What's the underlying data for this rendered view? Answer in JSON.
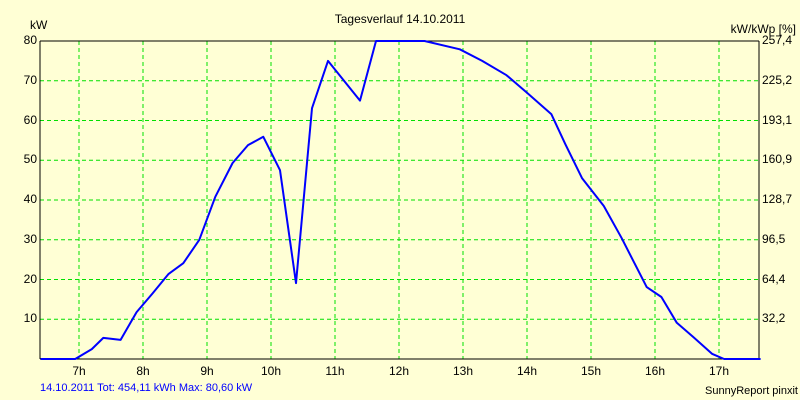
{
  "chart_data": {
    "type": "line",
    "title": "Tagesverlauf 14.10.2011",
    "ylabel": "kW",
    "ylabel_right": "kW/kWp [%]",
    "xlabel": "",
    "ylim": [
      0,
      80
    ],
    "x_range_hours": [
      6.4,
      17.65
    ],
    "y_ticks": [
      "10",
      "20",
      "30",
      "40",
      "50",
      "60",
      "70",
      "80"
    ],
    "y_ticks_right": [
      "32,2",
      "64,4",
      "96,5",
      "128,7",
      "160,9",
      "193,1",
      "225,2",
      "257,4"
    ],
    "x_ticks": [
      "7h",
      "8h",
      "9h",
      "10h",
      "11h",
      "12h",
      "13h",
      "14h",
      "15h",
      "16h",
      "17h"
    ],
    "grid": true,
    "series": [
      {
        "name": "kW",
        "color": "#0000ff",
        "points": [
          [
            6.4,
            0
          ],
          [
            6.94,
            0
          ],
          [
            7.2,
            2.5
          ],
          [
            7.38,
            5.3
          ],
          [
            7.65,
            4.8
          ],
          [
            7.9,
            11.8
          ],
          [
            8.15,
            16.5
          ],
          [
            8.4,
            21.4
          ],
          [
            8.63,
            24.1
          ],
          [
            8.88,
            30
          ],
          [
            9.13,
            40.8
          ],
          [
            9.4,
            49.3
          ],
          [
            9.64,
            53.8
          ],
          [
            9.88,
            55.9
          ],
          [
            10.14,
            47.5
          ],
          [
            10.39,
            19.1
          ],
          [
            10.64,
            63.1
          ],
          [
            10.89,
            75
          ],
          [
            11.14,
            70
          ],
          [
            11.39,
            65
          ],
          [
            11.64,
            80
          ],
          [
            12.0,
            80
          ],
          [
            12.4,
            80
          ],
          [
            12.95,
            77.9
          ],
          [
            13.3,
            75
          ],
          [
            13.68,
            71.4
          ],
          [
            14.0,
            67
          ],
          [
            14.38,
            61.6
          ],
          [
            14.6,
            54
          ],
          [
            14.86,
            45.5
          ],
          [
            15.2,
            38.5
          ],
          [
            15.48,
            30.4
          ],
          [
            15.87,
            18.1
          ],
          [
            16.1,
            15.6
          ],
          [
            16.34,
            9.1
          ],
          [
            16.6,
            5.5
          ],
          [
            16.89,
            1.3
          ],
          [
            17.08,
            0
          ],
          [
            17.65,
            0
          ]
        ]
      }
    ]
  },
  "footer": {
    "summary": "14.10.2011 Tot: 454,11 kWh Max: 80,60 kW",
    "credit": "SunnyReport pinxit"
  }
}
